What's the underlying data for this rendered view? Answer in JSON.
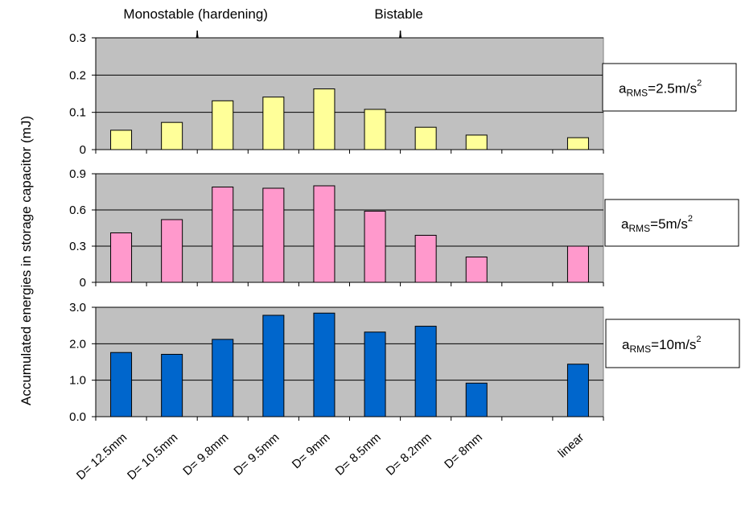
{
  "chart_data": {
    "type": "bar",
    "ylabel": "Accumulated energies in storage capacitor (mJ)",
    "categories": [
      "D= 12.5mm",
      "D= 10.5mm",
      "D= 9.8mm",
      "D= 9.5mm",
      "D= 9mm",
      "D= 8.5mm",
      "D= 8.2mm",
      "D= 8mm",
      "",
      "linear"
    ],
    "group_labels": [
      {
        "text": "Monostable (hardening)",
        "from": 0,
        "to": 3
      },
      {
        "text": "Bistable",
        "from": 4,
        "to": 7
      }
    ],
    "panels": [
      {
        "label_main": "a",
        "label_sub": "RMS",
        "label_value": "=2.5m/s",
        "label_sup": "2",
        "color": "#ffff99",
        "ylim": [
          0,
          0.3
        ],
        "yticks": [
          "0",
          "0.1",
          "0.2",
          "0.3"
        ],
        "tick_values": [
          0,
          0.1,
          0.2,
          0.3
        ],
        "values": [
          0.052,
          0.073,
          0.131,
          0.141,
          0.163,
          0.108,
          0.06,
          0.039,
          null,
          0.032
        ]
      },
      {
        "label_main": "a",
        "label_sub": "RMS",
        "label_value": "=5m/s",
        "label_sup": "2",
        "color": "#ff99cc",
        "ylim": [
          0,
          0.9
        ],
        "yticks": [
          "0",
          "0.3",
          "0.6",
          "0.9"
        ],
        "tick_values": [
          0,
          0.3,
          0.6,
          0.9
        ],
        "values": [
          0.41,
          0.52,
          0.79,
          0.78,
          0.8,
          0.59,
          0.39,
          0.21,
          null,
          0.3
        ]
      },
      {
        "label_main": "a",
        "label_sub": "RMS",
        "label_value": "=10m/s",
        "label_sup": "2",
        "color": "#0066cc",
        "ylim": [
          0,
          3.0
        ],
        "yticks": [
          "0.0",
          "1.0",
          "2.0",
          "3.0"
        ],
        "tick_values": [
          0,
          1,
          2,
          3
        ],
        "values": [
          1.76,
          1.71,
          2.12,
          2.78,
          2.84,
          2.32,
          2.48,
          0.92,
          null,
          1.44
        ]
      }
    ]
  }
}
